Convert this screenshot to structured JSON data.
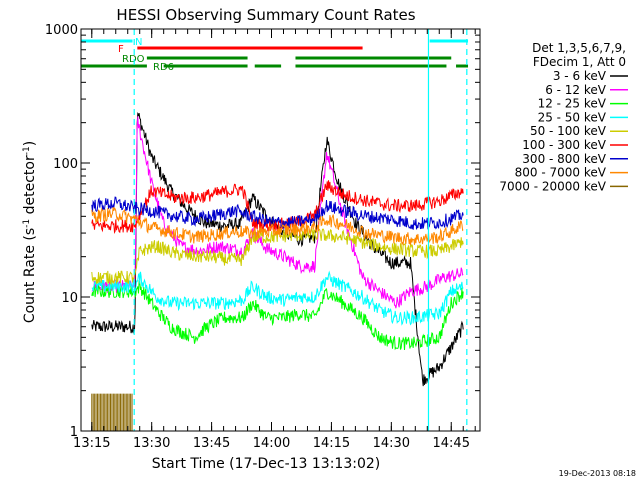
{
  "chart_data": {
    "type": "line",
    "title": "HESSI Observing Summary Count Rates",
    "xlabel": "Start Time (17-Dec-13 13:13:02)",
    "ylabel_main": "Count Rate (s",
    "ylabel_sup1": "-1",
    "ylabel_mid": " detector",
    "ylabel_sup2": "-1",
    "ylabel_end": ")",
    "y_scale": "log",
    "ylim": [
      1,
      1000
    ],
    "xlim": [
      13.205,
      14.87
    ],
    "x_ticks": [
      {
        "value": 13.25,
        "label": "13:15"
      },
      {
        "value": 13.5,
        "label": "13:30"
      },
      {
        "value": 13.75,
        "label": "13:45"
      },
      {
        "value": 14.0,
        "label": "14:00"
      },
      {
        "value": 14.25,
        "label": "14:15"
      },
      {
        "value": 14.5,
        "label": "14:30"
      },
      {
        "value": 14.75,
        "label": "14:45"
      }
    ],
    "y_ticks": [
      {
        "value": 1,
        "label": "1"
      },
      {
        "value": 10,
        "label": "10"
      },
      {
        "value": 100,
        "label": "100"
      },
      {
        "value": 1000,
        "label": "1000"
      }
    ],
    "legend_header": [
      "Det 1,3,5,6,7,9,",
      "FDecim 1, Att 0"
    ],
    "legend_position": "right",
    "series": [
      {
        "name": "3 - 6 keV",
        "color": "#000000",
        "points": [
          [
            13.25,
            6
          ],
          [
            13.43,
            6
          ],
          [
            13.44,
            240
          ],
          [
            13.5,
            110
          ],
          [
            13.58,
            62
          ],
          [
            13.65,
            45
          ],
          [
            13.72,
            36
          ],
          [
            13.8,
            34
          ],
          [
            13.87,
            35
          ],
          [
            13.92,
            55
          ],
          [
            13.98,
            40
          ],
          [
            14.05,
            30
          ],
          [
            14.12,
            27
          ],
          [
            14.18,
            28
          ],
          [
            14.23,
            150
          ],
          [
            14.28,
            70
          ],
          [
            14.35,
            36
          ],
          [
            14.42,
            24
          ],
          [
            14.5,
            18
          ],
          [
            14.58,
            18
          ],
          [
            14.63,
            2.4
          ],
          [
            14.7,
            3
          ],
          [
            14.8,
            6
          ]
        ]
      },
      {
        "name": "6 - 12 keV",
        "color": "#ff00ff",
        "points": [
          [
            13.25,
            12
          ],
          [
            13.43,
            12
          ],
          [
            13.44,
            210
          ],
          [
            13.5,
            70
          ],
          [
            13.55,
            35
          ],
          [
            13.62,
            24
          ],
          [
            13.7,
            22
          ],
          [
            13.78,
            24
          ],
          [
            13.88,
            22
          ],
          [
            13.92,
            30
          ],
          [
            13.98,
            23
          ],
          [
            14.05,
            20
          ],
          [
            14.12,
            17
          ],
          [
            14.18,
            17
          ],
          [
            14.23,
            120
          ],
          [
            14.3,
            40
          ],
          [
            14.38,
            14
          ],
          [
            14.45,
            11
          ],
          [
            14.52,
            9
          ],
          [
            14.58,
            11
          ],
          [
            14.65,
            12
          ],
          [
            14.72,
            14
          ],
          [
            14.8,
            15
          ]
        ]
      },
      {
        "name": "12 - 25 keV",
        "color": "#00ff00",
        "points": [
          [
            13.25,
            11
          ],
          [
            13.43,
            11
          ],
          [
            13.45,
            12
          ],
          [
            13.52,
            8
          ],
          [
            13.58,
            6
          ],
          [
            13.62,
            5.5
          ],
          [
            13.68,
            5
          ],
          [
            13.73,
            6
          ],
          [
            13.8,
            7
          ],
          [
            13.88,
            7
          ],
          [
            13.92,
            9
          ],
          [
            13.98,
            7
          ],
          [
            14.05,
            7
          ],
          [
            14.12,
            7.5
          ],
          [
            14.18,
            7
          ],
          [
            14.23,
            11
          ],
          [
            14.3,
            9
          ],
          [
            14.38,
            7
          ],
          [
            14.45,
            5
          ],
          [
            14.52,
            4.5
          ],
          [
            14.6,
            4.5
          ],
          [
            14.7,
            5
          ],
          [
            14.75,
            9
          ],
          [
            14.8,
            11
          ]
        ]
      },
      {
        "name": "25 - 50 keV",
        "color": "#00ffff",
        "points": [
          [
            13.25,
            12
          ],
          [
            13.43,
            12
          ],
          [
            13.45,
            14
          ],
          [
            13.52,
            10
          ],
          [
            13.58,
            9
          ],
          [
            13.65,
            9
          ],
          [
            13.72,
            9
          ],
          [
            13.8,
            9
          ],
          [
            13.88,
            9.5
          ],
          [
            13.92,
            12
          ],
          [
            13.98,
            10
          ],
          [
            14.05,
            9.5
          ],
          [
            14.12,
            10
          ],
          [
            14.18,
            10
          ],
          [
            14.23,
            14
          ],
          [
            14.3,
            12
          ],
          [
            14.38,
            10
          ],
          [
            14.45,
            8
          ],
          [
            14.52,
            7
          ],
          [
            14.6,
            7
          ],
          [
            14.7,
            7.5
          ],
          [
            14.75,
            11
          ],
          [
            14.8,
            12
          ]
        ]
      },
      {
        "name": "50 - 100 keV",
        "color": "#cccc00",
        "points": [
          [
            13.25,
            14
          ],
          [
            13.43,
            14
          ],
          [
            13.45,
            22
          ],
          [
            13.52,
            24
          ],
          [
            13.6,
            21
          ],
          [
            13.68,
            20
          ],
          [
            13.75,
            20
          ],
          [
            13.82,
            19
          ],
          [
            13.88,
            19
          ],
          [
            13.92,
            28
          ],
          [
            14.0,
            28
          ],
          [
            14.1,
            29
          ],
          [
            14.2,
            29
          ],
          [
            14.3,
            28
          ],
          [
            14.4,
            25
          ],
          [
            14.5,
            23
          ],
          [
            14.6,
            22
          ],
          [
            14.7,
            22
          ],
          [
            14.78,
            25
          ],
          [
            14.8,
            27
          ]
        ]
      },
      {
        "name": "100 - 300 keV",
        "color": "#ff0000",
        "points": [
          [
            13.25,
            34
          ],
          [
            13.43,
            34
          ],
          [
            13.44,
            38
          ],
          [
            13.5,
            62
          ],
          [
            13.6,
            55
          ],
          [
            13.68,
            55
          ],
          [
            13.75,
            58
          ],
          [
            13.82,
            62
          ],
          [
            13.88,
            64
          ],
          [
            13.92,
            36
          ],
          [
            14.0,
            34
          ],
          [
            14.1,
            36
          ],
          [
            14.18,
            40
          ],
          [
            14.23,
            68
          ],
          [
            14.3,
            58
          ],
          [
            14.4,
            52
          ],
          [
            14.5,
            48
          ],
          [
            14.6,
            48
          ],
          [
            14.7,
            52
          ],
          [
            14.78,
            60
          ],
          [
            14.8,
            62
          ]
        ]
      },
      {
        "name": "300 - 800 keV",
        "color": "#0000cc",
        "points": [
          [
            13.25,
            48
          ],
          [
            13.35,
            50
          ],
          [
            13.43,
            46
          ],
          [
            13.5,
            44
          ],
          [
            13.6,
            40
          ],
          [
            13.68,
            38
          ],
          [
            13.75,
            40
          ],
          [
            13.85,
            44
          ],
          [
            13.92,
            40
          ],
          [
            14.0,
            36
          ],
          [
            14.1,
            36
          ],
          [
            14.18,
            38
          ],
          [
            14.23,
            48
          ],
          [
            14.3,
            44
          ],
          [
            14.4,
            40
          ],
          [
            14.5,
            38
          ],
          [
            14.6,
            35
          ],
          [
            14.7,
            36
          ],
          [
            14.78,
            40
          ],
          [
            14.8,
            42
          ]
        ]
      },
      {
        "name": "800 - 7000 keV",
        "color": "#ff8800",
        "points": [
          [
            13.25,
            40
          ],
          [
            13.35,
            42
          ],
          [
            13.43,
            38
          ],
          [
            13.5,
            33
          ],
          [
            13.6,
            30
          ],
          [
            13.68,
            28
          ],
          [
            13.75,
            29
          ],
          [
            13.85,
            31
          ],
          [
            13.92,
            30
          ],
          [
            14.0,
            31
          ],
          [
            14.1,
            32
          ],
          [
            14.18,
            33
          ],
          [
            14.23,
            38
          ],
          [
            14.3,
            35
          ],
          [
            14.4,
            30
          ],
          [
            14.5,
            28
          ],
          [
            14.6,
            27
          ],
          [
            14.7,
            28
          ],
          [
            14.78,
            33
          ],
          [
            14.8,
            35
          ]
        ]
      },
      {
        "name": "7000 - 20000 keV",
        "color": "#886600",
        "points": [
          [
            13.25,
            1.9
          ],
          [
            13.42,
            1.9
          ]
        ]
      }
    ],
    "timeline_bars": [
      {
        "label": "N",
        "color": "#00ffff",
        "segments": [
          [
            13.205,
            13.42
          ],
          [
            14.66,
            14.82
          ]
        ]
      },
      {
        "label": "F",
        "color": "#ff0000",
        "segments": [
          [
            13.44,
            14.38
          ]
        ]
      },
      {
        "label": "RDO",
        "color": "#008800",
        "segments": [
          [
            13.48,
            13.9
          ],
          [
            14.1,
            14.75
          ]
        ]
      },
      {
        "label": "RD6",
        "color": "#008800",
        "segments": [
          [
            13.205,
            13.48
          ],
          [
            13.55,
            13.9
          ],
          [
            13.93,
            14.04
          ],
          [
            14.1,
            14.73
          ],
          [
            14.77,
            14.82
          ]
        ]
      }
    ],
    "vlines": [
      {
        "x": 13.427,
        "style": "dashed",
        "color": "#00ffff"
      },
      {
        "x": 14.655,
        "style": "solid",
        "color": "#00ffff"
      },
      {
        "x": 14.815,
        "style": "dashed",
        "color": "#00ffff"
      }
    ]
  },
  "footer": {
    "timestamp": "19-Dec-2013 08:18"
  }
}
